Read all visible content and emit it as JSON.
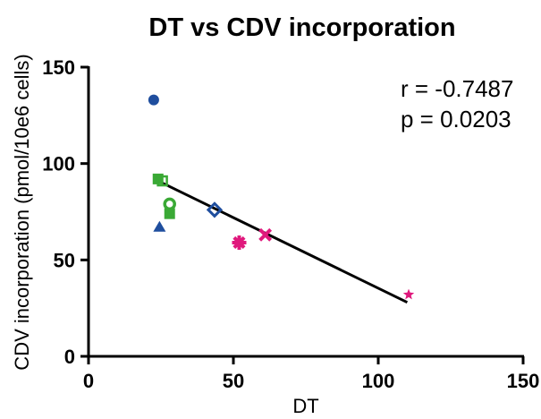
{
  "chart_data": {
    "type": "scatter",
    "title": "DT vs CDV incorporation",
    "xlabel": "DT",
    "ylabel": "CDV incorporation (pmol/10e6 cells)",
    "xlim": [
      0,
      150
    ],
    "ylim": [
      0,
      150
    ],
    "xticks": [
      0,
      50,
      100,
      150
    ],
    "yticks": [
      0,
      50,
      100,
      150
    ],
    "annotations": [
      "r = -0.7487",
      "p = 0.0203"
    ],
    "grid": false,
    "points": [
      {
        "x": 22.5,
        "y": 133,
        "marker": "circle",
        "color": "#1f4e9e"
      },
      {
        "x": 24.5,
        "y": 67,
        "marker": "triangle",
        "color": "#1f4e9e"
      },
      {
        "x": 43.5,
        "y": 76,
        "marker": "diamond-open",
        "color": "#1f4e9e"
      },
      {
        "x": 24.0,
        "y": 92,
        "marker": "square",
        "color": "#3aa935"
      },
      {
        "x": 25.5,
        "y": 91,
        "marker": "square-open",
        "color": "#3aa935"
      },
      {
        "x": 28.0,
        "y": 79,
        "marker": "circle-open",
        "color": "#3aa935"
      },
      {
        "x": 28.0,
        "y": 74,
        "marker": "square",
        "color": "#3aa935"
      },
      {
        "x": 52.0,
        "y": 59,
        "marker": "asterisk",
        "color": "#e0197d"
      },
      {
        "x": 61.0,
        "y": 63,
        "marker": "cross",
        "color": "#e0197d"
      },
      {
        "x": 110.5,
        "y": 32,
        "marker": "star",
        "color": "#e0197d"
      }
    ],
    "fit_line": {
      "x": [
        24,
        110
      ],
      "y": [
        91,
        28
      ],
      "color": "#000000"
    }
  }
}
